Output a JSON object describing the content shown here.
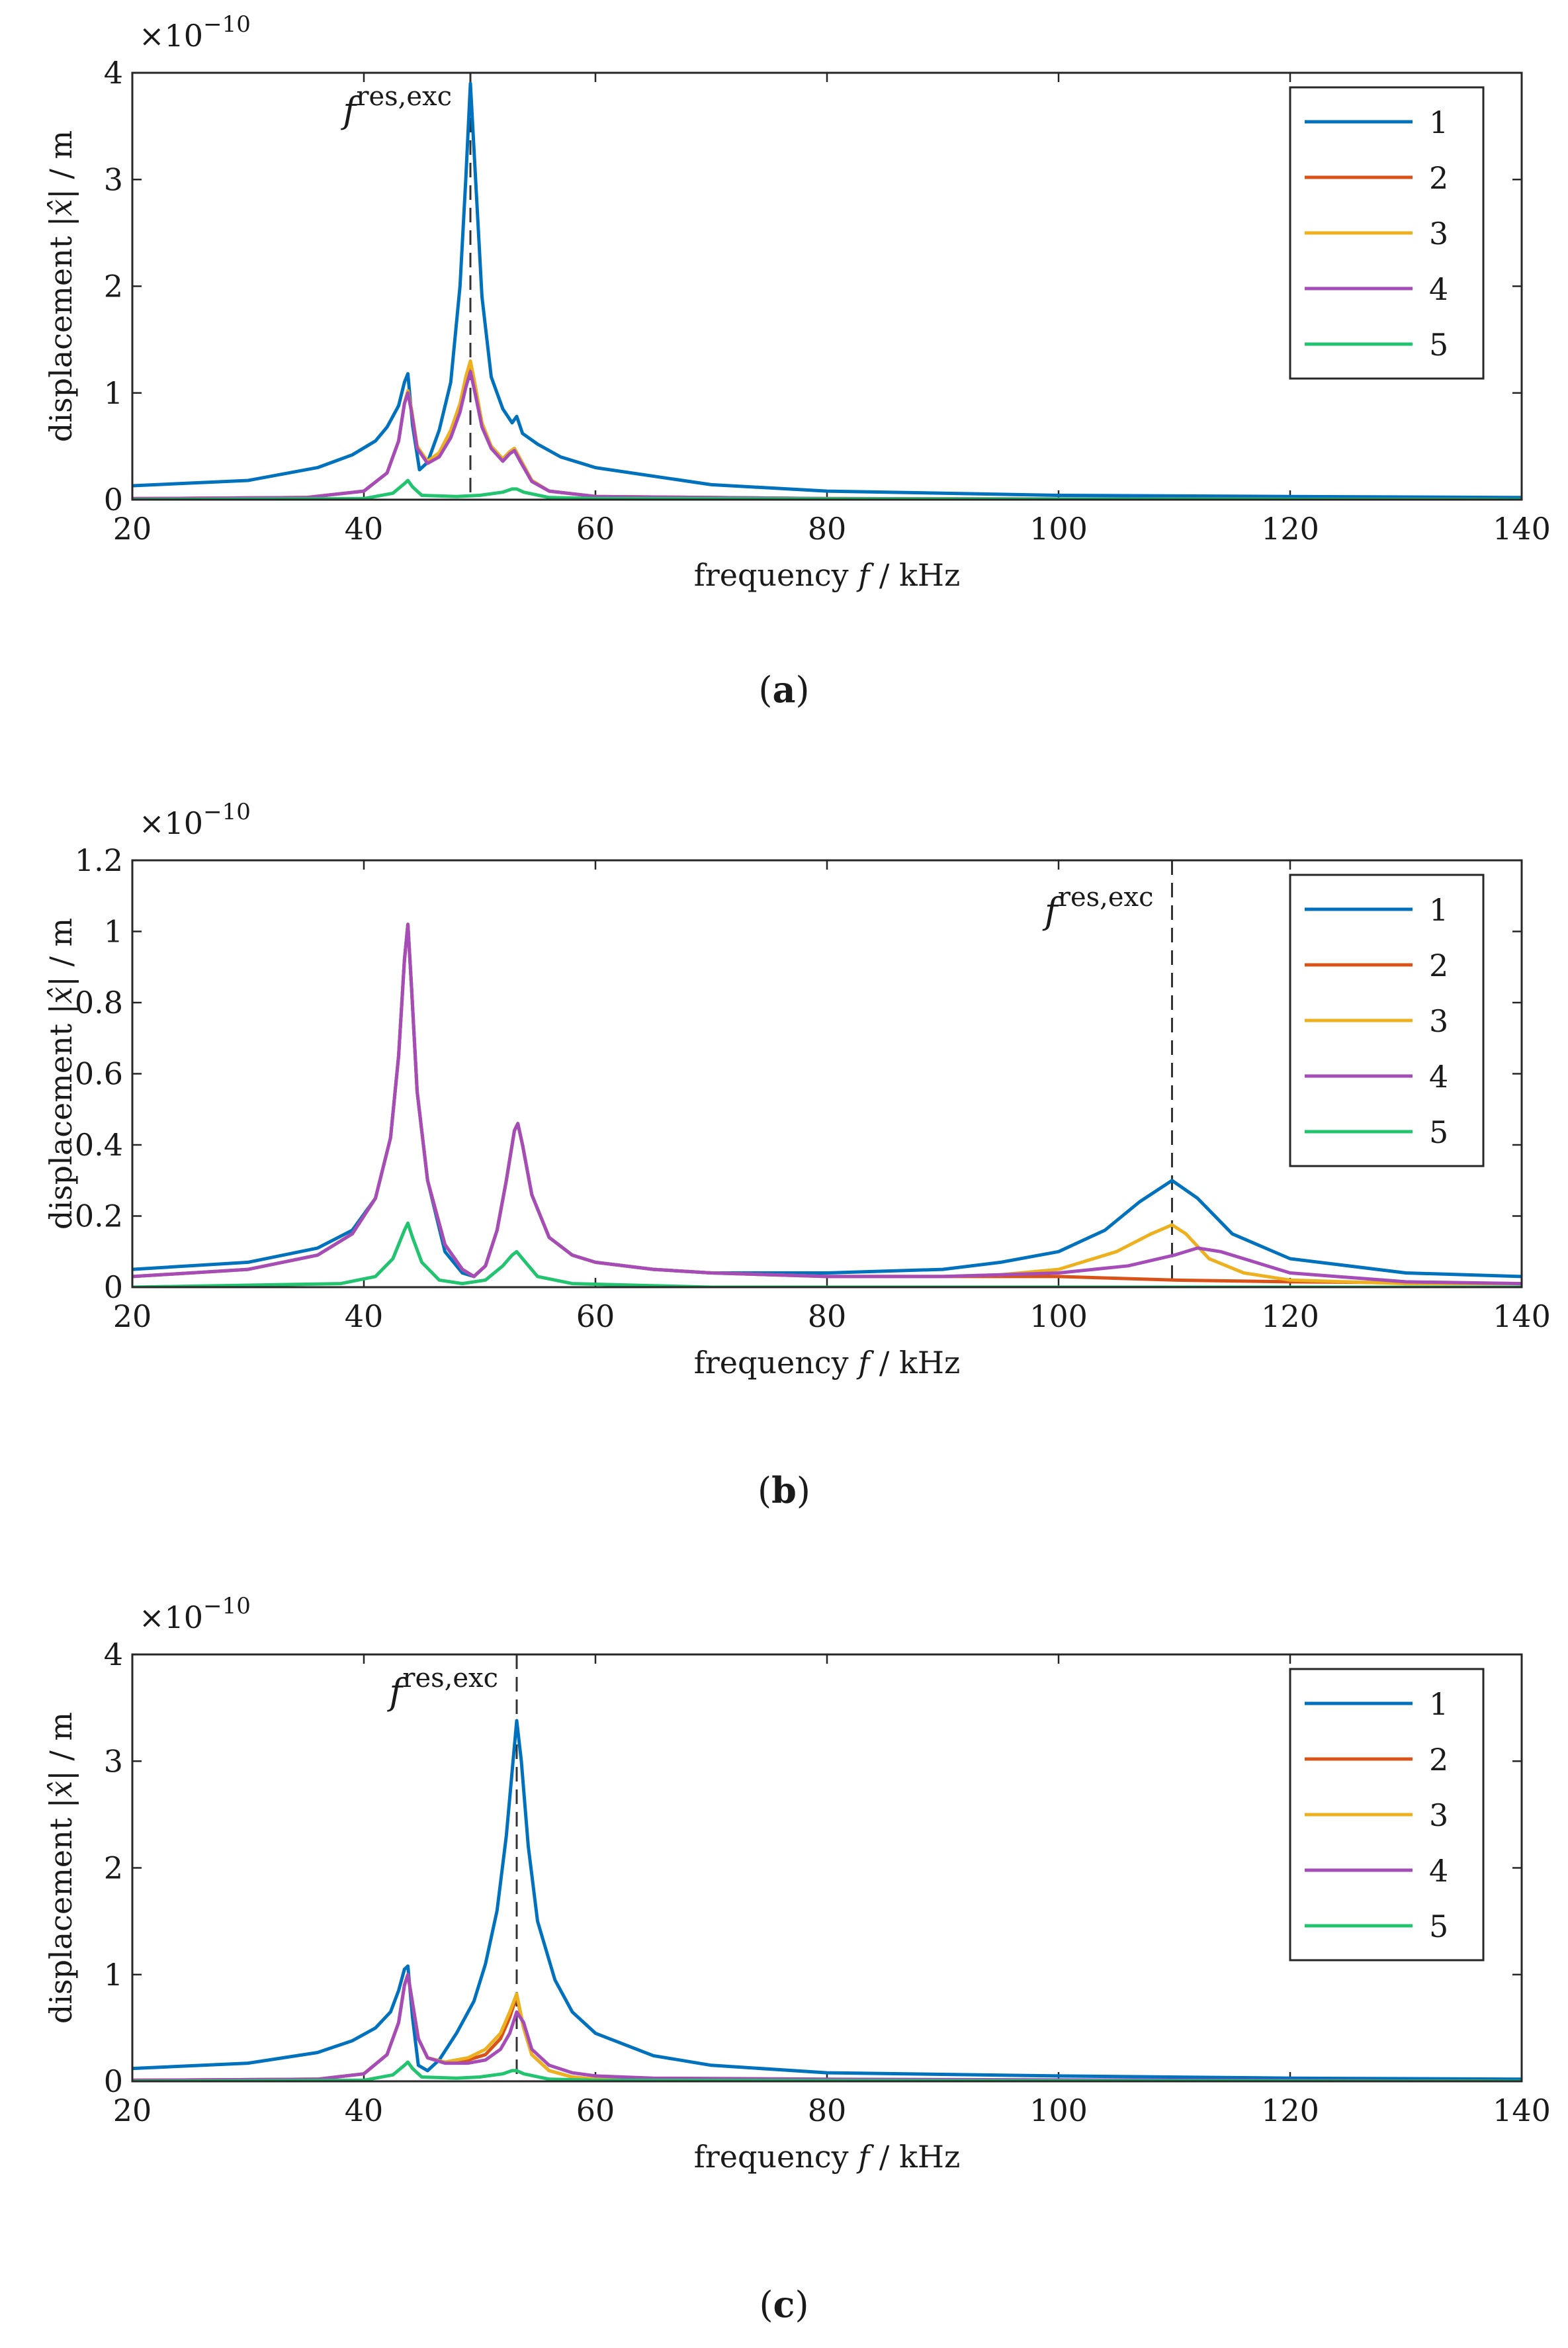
{
  "figure": {
    "panels": [
      {
        "caption_open": "(",
        "caption_letter": "a",
        "caption_close": ")",
        "exponent_base": "×10",
        "exponent_power": "−10",
        "marker_symbol": "f",
        "marker_superscript": "res,exc",
        "xlabel_pre": "frequency ",
        "xlabel_var": "f",
        "xlabel_post": " / kHz",
        "ylabel_pre": "displacement |",
        "ylabel_var": "x̂",
        "ylabel_post": "| / m"
      },
      {
        "caption_open": "(",
        "caption_letter": "b",
        "caption_close": ")",
        "exponent_base": "×10",
        "exponent_power": "−10",
        "marker_symbol": "f",
        "marker_superscript": "res,exc",
        "xlabel_pre": "frequency ",
        "xlabel_var": "f",
        "xlabel_post": " / kHz",
        "ylabel_pre": "displacement |",
        "ylabel_var": "x̂",
        "ylabel_post": "| / m"
      },
      {
        "caption_open": "(",
        "caption_letter": "c",
        "caption_close": ")",
        "exponent_base": "×10",
        "exponent_power": "−10",
        "marker_symbol": "f",
        "marker_superscript": "res,exc",
        "xlabel_pre": "frequency ",
        "xlabel_var": "f",
        "xlabel_post": " / kHz",
        "ylabel_pre": "displacement |",
        "ylabel_var": "x̂",
        "ylabel_post": "| / m"
      }
    ]
  },
  "chart_data": [
    {
      "type": "line",
      "panel": "a",
      "xlabel": "frequency f / kHz",
      "ylabel": "displacement |x̂| / m",
      "exponent": "×10^−10",
      "xlim": [
        20,
        140
      ],
      "ylim": [
        0,
        4
      ],
      "xticks": [
        "20",
        "40",
        "60",
        "80",
        "100",
        "120",
        "140"
      ],
      "yticks": [
        "0",
        "1",
        "2",
        "3",
        "4"
      ],
      "resonance_marker_x": 49.2,
      "legend_position": "top-right",
      "series": [
        {
          "name": "1",
          "color": "#0072BD",
          "x": [
            20,
            30,
            36,
            39,
            41,
            42,
            43,
            43.5,
            43.8,
            44.2,
            44.8,
            45.5,
            46.5,
            47.5,
            48.3,
            48.8,
            49.2,
            49.6,
            50.2,
            51,
            52,
            52.8,
            53.2,
            53.7,
            55,
            57,
            60,
            70,
            80,
            100,
            120,
            140
          ],
          "y": [
            0.13,
            0.18,
            0.3,
            0.42,
            0.55,
            0.68,
            0.88,
            1.1,
            1.18,
            0.7,
            0.28,
            0.35,
            0.65,
            1.1,
            2.0,
            3.0,
            3.9,
            3.1,
            1.9,
            1.15,
            0.85,
            0.72,
            0.78,
            0.62,
            0.52,
            0.4,
            0.3,
            0.14,
            0.08,
            0.04,
            0.03,
            0.02
          ]
        },
        {
          "name": "2",
          "color": "#D95319",
          "x": [
            20,
            35,
            40,
            42,
            43,
            43.5,
            43.8,
            44.1,
            44.6,
            45.5,
            46.5,
            47.5,
            48.3,
            48.8,
            49.2,
            49.6,
            50.2,
            51,
            52,
            52.6,
            53,
            53.5,
            54.5,
            56,
            60,
            80,
            140
          ],
          "y": [
            0.01,
            0.02,
            0.08,
            0.25,
            0.55,
            0.9,
            1.02,
            0.85,
            0.5,
            0.35,
            0.42,
            0.6,
            0.85,
            1.1,
            1.25,
            1.05,
            0.7,
            0.5,
            0.38,
            0.45,
            0.48,
            0.38,
            0.18,
            0.08,
            0.03,
            0.01,
            0
          ]
        },
        {
          "name": "3",
          "color": "#EDB120",
          "x": [
            20,
            35,
            40,
            42,
            43,
            43.5,
            43.8,
            44.1,
            44.6,
            45.5,
            46.5,
            47.5,
            48.3,
            48.8,
            49.2,
            49.6,
            50.2,
            51,
            52,
            52.6,
            53,
            53.5,
            54.5,
            56,
            60,
            80,
            140
          ],
          "y": [
            0.01,
            0.02,
            0.08,
            0.25,
            0.55,
            0.9,
            1.02,
            0.85,
            0.5,
            0.36,
            0.44,
            0.65,
            0.9,
            1.15,
            1.3,
            1.08,
            0.72,
            0.5,
            0.38,
            0.45,
            0.48,
            0.38,
            0.18,
            0.08,
            0.03,
            0.01,
            0
          ]
        },
        {
          "name": "4",
          "color": "#A64CB8",
          "x": [
            20,
            35,
            40,
            42,
            43,
            43.5,
            43.8,
            44.1,
            44.6,
            45.5,
            46.5,
            47.5,
            48.3,
            48.8,
            49.2,
            49.6,
            50.2,
            51,
            52,
            52.6,
            53,
            53.5,
            54.5,
            56,
            60,
            80,
            140
          ],
          "y": [
            0.01,
            0.02,
            0.08,
            0.25,
            0.55,
            0.9,
            1.0,
            0.83,
            0.48,
            0.34,
            0.4,
            0.58,
            0.82,
            1.05,
            1.2,
            1.0,
            0.68,
            0.48,
            0.36,
            0.43,
            0.46,
            0.36,
            0.17,
            0.08,
            0.03,
            0.01,
            0
          ]
        },
        {
          "name": "5",
          "color": "#22C46F",
          "x": [
            20,
            40,
            42.5,
            43.5,
            43.8,
            44.2,
            45,
            48,
            50,
            52,
            52.8,
            53.2,
            53.8,
            56,
            60,
            140
          ],
          "y": [
            0,
            0.01,
            0.06,
            0.15,
            0.18,
            0.12,
            0.04,
            0.03,
            0.04,
            0.07,
            0.1,
            0.1,
            0.07,
            0.02,
            0.01,
            0
          ]
        }
      ]
    },
    {
      "type": "line",
      "panel": "b",
      "xlabel": "frequency f / kHz",
      "ylabel": "displacement |x̂| / m",
      "exponent": "×10^−10",
      "xlim": [
        20,
        140
      ],
      "ylim": [
        0,
        1.2
      ],
      "xticks": [
        "20",
        "40",
        "60",
        "80",
        "100",
        "120",
        "140"
      ],
      "yticks": [
        "0",
        "0.2",
        "0.4",
        "0.6",
        "0.8",
        "1",
        "1.2"
      ],
      "resonance_marker_x": 109.8,
      "legend_position": "top-right",
      "series": [
        {
          "name": "1",
          "color": "#0072BD",
          "x": [
            20,
            30,
            36,
            39,
            41,
            42.3,
            43,
            43.5,
            43.8,
            44.1,
            44.6,
            45.5,
            47,
            48.5,
            49.5,
            50.5,
            51.5,
            52.3,
            53,
            53.3,
            53.7,
            54.5,
            56,
            58,
            60,
            65,
            70,
            80,
            90,
            95,
            100,
            104,
            107,
            109.8,
            112,
            115,
            120,
            130,
            140
          ],
          "y": [
            0.05,
            0.07,
            0.11,
            0.16,
            0.25,
            0.42,
            0.65,
            0.92,
            1.02,
            0.85,
            0.55,
            0.3,
            0.1,
            0.04,
            0.03,
            0.06,
            0.16,
            0.3,
            0.44,
            0.46,
            0.4,
            0.26,
            0.14,
            0.09,
            0.07,
            0.05,
            0.04,
            0.04,
            0.05,
            0.07,
            0.1,
            0.16,
            0.24,
            0.3,
            0.25,
            0.15,
            0.08,
            0.04,
            0.03
          ]
        },
        {
          "name": "2",
          "color": "#D95319",
          "x": [
            20,
            30,
            36,
            39,
            41,
            42.3,
            43,
            43.5,
            43.8,
            44.1,
            44.6,
            45.5,
            47,
            48.5,
            49.5,
            50.5,
            51.5,
            52.3,
            53,
            53.3,
            53.7,
            54.5,
            56,
            58,
            60,
            65,
            70,
            80,
            90,
            100,
            110,
            120,
            140
          ],
          "y": [
            0.03,
            0.05,
            0.09,
            0.15,
            0.25,
            0.42,
            0.65,
            0.92,
            1.02,
            0.85,
            0.55,
            0.3,
            0.12,
            0.05,
            0.03,
            0.06,
            0.16,
            0.3,
            0.44,
            0.46,
            0.4,
            0.26,
            0.14,
            0.09,
            0.07,
            0.05,
            0.04,
            0.03,
            0.03,
            0.03,
            0.02,
            0.015,
            0.01
          ]
        },
        {
          "name": "3",
          "color": "#EDB120",
          "x": [
            20,
            30,
            36,
            39,
            41,
            42.3,
            43,
            43.5,
            43.8,
            44.1,
            44.6,
            45.5,
            47,
            48.5,
            49.5,
            50.5,
            51.5,
            52.3,
            53,
            53.3,
            53.7,
            54.5,
            56,
            58,
            60,
            65,
            70,
            80,
            90,
            95,
            100,
            105,
            108,
            109.8,
            111,
            113,
            116,
            120,
            130,
            140
          ],
          "y": [
            0.03,
            0.05,
            0.09,
            0.15,
            0.25,
            0.42,
            0.65,
            0.92,
            1.02,
            0.85,
            0.55,
            0.3,
            0.12,
            0.05,
            0.03,
            0.06,
            0.16,
            0.3,
            0.44,
            0.46,
            0.4,
            0.26,
            0.14,
            0.09,
            0.07,
            0.05,
            0.04,
            0.03,
            0.03,
            0.035,
            0.05,
            0.1,
            0.15,
            0.175,
            0.15,
            0.08,
            0.04,
            0.02,
            0.01,
            0.01
          ]
        },
        {
          "name": "4",
          "color": "#A64CB8",
          "x": [
            20,
            30,
            36,
            39,
            41,
            42.3,
            43,
            43.5,
            43.8,
            44.1,
            44.6,
            45.5,
            47,
            48.5,
            49.5,
            50.5,
            51.5,
            52.3,
            53,
            53.3,
            53.7,
            54.5,
            56,
            58,
            60,
            65,
            70,
            80,
            90,
            100,
            106,
            110,
            112,
            114,
            117,
            120,
            130,
            140
          ],
          "y": [
            0.03,
            0.05,
            0.09,
            0.15,
            0.25,
            0.42,
            0.65,
            0.92,
            1.02,
            0.85,
            0.55,
            0.3,
            0.12,
            0.05,
            0.03,
            0.06,
            0.16,
            0.3,
            0.44,
            0.46,
            0.4,
            0.26,
            0.14,
            0.09,
            0.07,
            0.05,
            0.04,
            0.03,
            0.03,
            0.04,
            0.06,
            0.09,
            0.11,
            0.1,
            0.07,
            0.04,
            0.015,
            0.01
          ]
        },
        {
          "name": "5",
          "color": "#22C46F",
          "x": [
            20,
            38,
            41,
            42.5,
            43.5,
            43.8,
            44.2,
            45,
            46.5,
            48.5,
            50.5,
            52,
            52.8,
            53.2,
            53.7,
            55,
            58,
            70,
            140
          ],
          "y": [
            0,
            0.01,
            0.03,
            0.08,
            0.16,
            0.18,
            0.14,
            0.07,
            0.02,
            0.01,
            0.02,
            0.06,
            0.09,
            0.1,
            0.08,
            0.03,
            0.01,
            0,
            0
          ]
        }
      ]
    },
    {
      "type": "line",
      "panel": "c",
      "xlabel": "frequency f / kHz",
      "ylabel": "displacement |x̂| / m",
      "exponent": "×10^−10",
      "xlim": [
        20,
        140
      ],
      "ylim": [
        0,
        4
      ],
      "xticks": [
        "20",
        "40",
        "60",
        "80",
        "100",
        "120",
        "140"
      ],
      "yticks": [
        "0",
        "1",
        "2",
        "3",
        "4"
      ],
      "resonance_marker_x": 53.2,
      "legend_position": "top-right",
      "series": [
        {
          "name": "1",
          "color": "#0072BD",
          "x": [
            20,
            30,
            36,
            39,
            41,
            42.3,
            43,
            43.5,
            43.8,
            44.2,
            44.7,
            45.5,
            46.5,
            48,
            49.5,
            50.5,
            51.5,
            52.3,
            52.8,
            53.2,
            53.6,
            54.2,
            55,
            56.5,
            58,
            60,
            65,
            70,
            80,
            100,
            120,
            140
          ],
          "y": [
            0.12,
            0.17,
            0.27,
            0.38,
            0.5,
            0.65,
            0.85,
            1.05,
            1.08,
            0.6,
            0.15,
            0.1,
            0.2,
            0.45,
            0.75,
            1.1,
            1.6,
            2.3,
            2.9,
            3.38,
            3.0,
            2.2,
            1.5,
            0.95,
            0.65,
            0.45,
            0.24,
            0.15,
            0.08,
            0.05,
            0.03,
            0.02
          ]
        },
        {
          "name": "2",
          "color": "#D95319",
          "x": [
            20,
            36,
            40,
            42,
            43,
            43.5,
            43.8,
            44.1,
            44.7,
            45.5,
            47,
            49,
            50.5,
            51.8,
            52.6,
            53.2,
            53.8,
            54.5,
            56,
            58,
            60,
            140
          ],
          "y": [
            0.01,
            0.02,
            0.07,
            0.25,
            0.55,
            0.9,
            1.0,
            0.8,
            0.4,
            0.22,
            0.18,
            0.2,
            0.25,
            0.4,
            0.6,
            0.8,
            0.5,
            0.25,
            0.1,
            0.04,
            0.02,
            0
          ]
        },
        {
          "name": "3",
          "color": "#EDB120",
          "x": [
            20,
            36,
            40,
            42,
            43,
            43.5,
            43.8,
            44.1,
            44.7,
            45.5,
            47,
            49,
            50.5,
            51.8,
            52.6,
            53.2,
            53.8,
            54.5,
            56,
            58,
            60,
            140
          ],
          "y": [
            0.01,
            0.02,
            0.07,
            0.25,
            0.55,
            0.9,
            1.0,
            0.8,
            0.4,
            0.22,
            0.18,
            0.22,
            0.3,
            0.45,
            0.65,
            0.82,
            0.5,
            0.25,
            0.1,
            0.04,
            0.02,
            0
          ]
        },
        {
          "name": "4",
          "color": "#A64CB8",
          "x": [
            20,
            36,
            40,
            42,
            43,
            43.5,
            43.8,
            44.1,
            44.7,
            45.5,
            47,
            49,
            50.5,
            51.8,
            52.6,
            53.2,
            53.8,
            54.5,
            56,
            58,
            60,
            65,
            80,
            140
          ],
          "y": [
            0.01,
            0.02,
            0.07,
            0.25,
            0.55,
            0.9,
            1.0,
            0.8,
            0.4,
            0.22,
            0.17,
            0.17,
            0.2,
            0.3,
            0.45,
            0.65,
            0.55,
            0.3,
            0.15,
            0.08,
            0.05,
            0.03,
            0.02,
            0
          ]
        },
        {
          "name": "5",
          "color": "#22C46F",
          "x": [
            20,
            40,
            42.5,
            43.5,
            43.8,
            44.2,
            45,
            48,
            50,
            52,
            52.8,
            53.2,
            53.8,
            56,
            60,
            140
          ],
          "y": [
            0,
            0.01,
            0.06,
            0.15,
            0.18,
            0.12,
            0.04,
            0.03,
            0.04,
            0.07,
            0.1,
            0.1,
            0.07,
            0.02,
            0.01,
            0
          ]
        }
      ]
    }
  ]
}
